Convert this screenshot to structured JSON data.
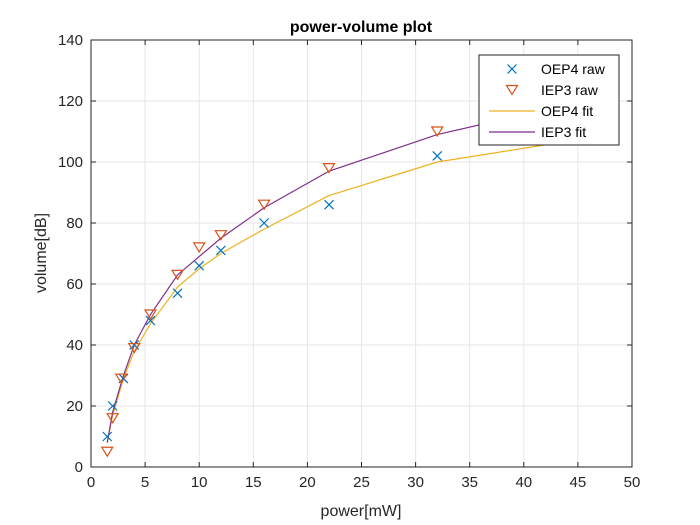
{
  "chart_data": {
    "type": "line",
    "title": "power-volume plot",
    "xlabel": "power[mW]",
    "ylabel": "volume[dB]",
    "xlim": [
      0,
      50
    ],
    "ylim": [
      0,
      140
    ],
    "xticks": [
      0,
      5,
      10,
      15,
      20,
      25,
      30,
      35,
      40,
      45,
      50
    ],
    "yticks": [
      0,
      20,
      40,
      60,
      80,
      100,
      120,
      140
    ],
    "grid": true,
    "legend_position": "top-right",
    "series": [
      {
        "name": "OEP4 raw",
        "kind": "scatter",
        "marker": "x",
        "color": "#0072BD",
        "x": [
          1.5,
          2,
          3,
          4,
          5.5,
          8,
          10,
          12,
          16,
          22,
          32
        ],
        "y": [
          10,
          20,
          29,
          40,
          48,
          57,
          66,
          71,
          80,
          86,
          102
        ]
      },
      {
        "name": "IEP3 raw",
        "kind": "scatter",
        "marker": "triangle-down",
        "color": "#D95319",
        "x": [
          1.5,
          2,
          2.8,
          4,
          5.5,
          8,
          10,
          12,
          16,
          22,
          32,
          48
        ],
        "y": [
          5,
          16,
          29,
          39,
          50,
          63,
          72,
          76,
          86,
          98,
          110,
          123
        ]
      },
      {
        "name": "OEP4 fit",
        "kind": "line",
        "color": "#EDB120",
        "x": [
          1.5,
          2,
          3,
          4,
          5.5,
          8,
          10,
          12,
          16,
          22,
          32,
          48
        ],
        "y": [
          8,
          17,
          29,
          38,
          47,
          59,
          65,
          70,
          78,
          89,
          100,
          109
        ]
      },
      {
        "name": "IEP3 fit",
        "kind": "line",
        "color": "#7E2F8E",
        "x": [
          1.5,
          2,
          3,
          4,
          5.5,
          8,
          10,
          12,
          16,
          22,
          32,
          48
        ],
        "y": [
          8,
          18,
          30,
          40,
          50,
          63,
          69,
          75,
          85,
          97,
          109,
          122
        ]
      }
    ]
  }
}
